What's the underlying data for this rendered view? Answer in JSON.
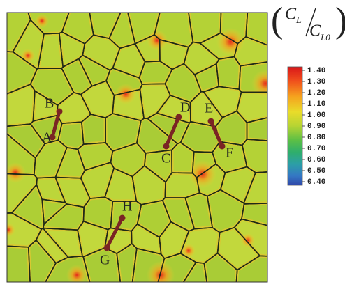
{
  "legend_title": {
    "numerator": {
      "symbol": "C",
      "subscript": "L"
    },
    "denominator": {
      "symbol": "C",
      "subscript": "L0"
    }
  },
  "colorbar": {
    "range": [
      0.4,
      1.4
    ],
    "ticks": [
      {
        "value": 1.4,
        "label": "1.40"
      },
      {
        "value": 1.3,
        "label": "1.30"
      },
      {
        "value": 1.2,
        "label": "1.20"
      },
      {
        "value": 1.1,
        "label": "1.10"
      },
      {
        "value": 1.0,
        "label": "1.00"
      },
      {
        "value": 0.9,
        "label": "0.90"
      },
      {
        "value": 0.8,
        "label": "0.80"
      },
      {
        "value": 0.7,
        "label": "0.70"
      },
      {
        "value": 0.6,
        "label": "0.60"
      },
      {
        "value": 0.5,
        "label": "0.50"
      },
      {
        "value": 0.4,
        "label": "0.40"
      }
    ]
  },
  "points": [
    "A",
    "B",
    "C",
    "D",
    "E",
    "F",
    "G",
    "H"
  ]
}
